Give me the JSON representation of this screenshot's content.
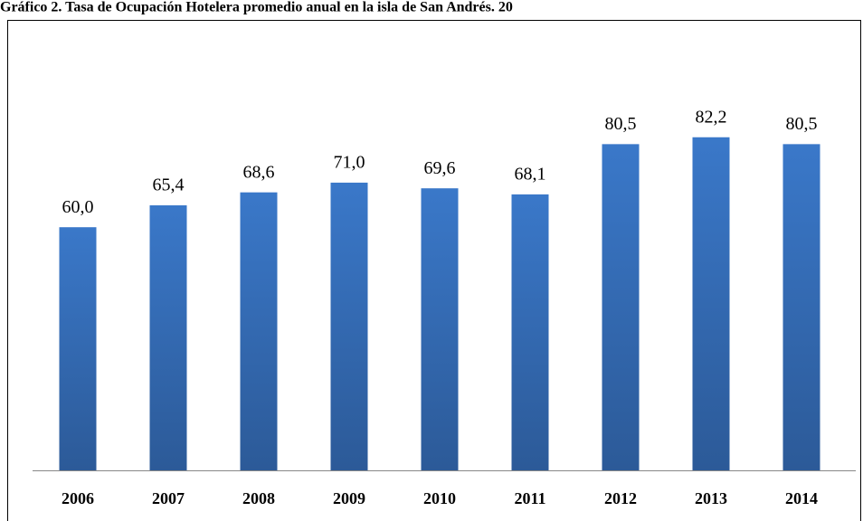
{
  "chart_data": {
    "type": "bar",
    "title": "Gráfico 2. Tasa de Ocupación Hotelera promedio anual en la isla de San Andrés. 20",
    "categories": [
      "2006",
      "2007",
      "2008",
      "2009",
      "2010",
      "2011",
      "2012",
      "2013",
      "2014"
    ],
    "values": [
      60.0,
      65.4,
      68.6,
      71.0,
      69.6,
      68.1,
      80.5,
      82.2,
      80.5
    ],
    "value_labels": [
      "60,0",
      "65,4",
      "68,6",
      "71,0",
      "69,6",
      "68,1",
      "80,5",
      "82,2",
      "80,5"
    ],
    "color": "#3a78c9"
  }
}
